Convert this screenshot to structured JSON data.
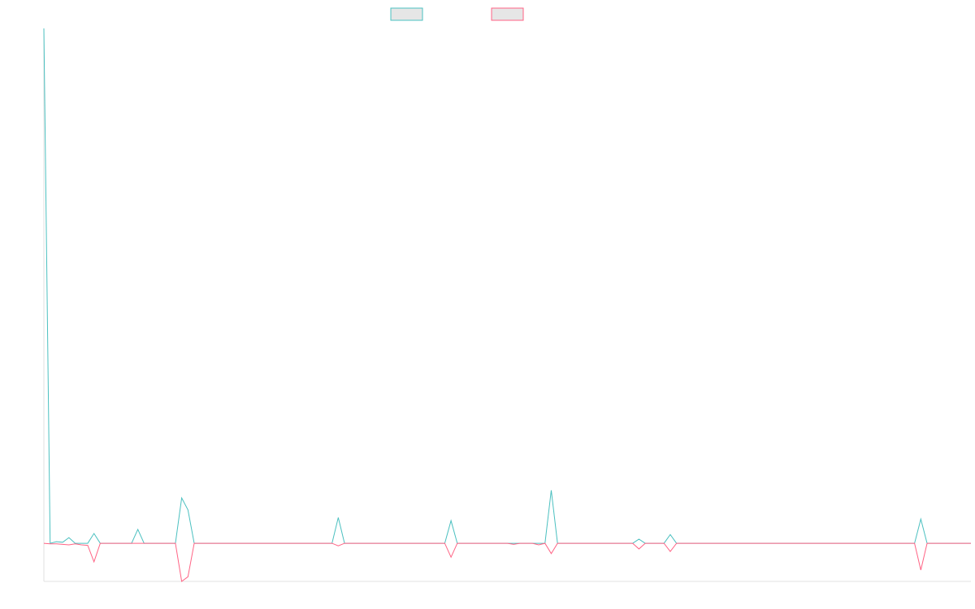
{
  "chart_data": {
    "type": "line",
    "ylim": [
      -7.4,
      100
    ],
    "legend": "top",
    "series": [
      {
        "color": "#4bc0c0",
        "values": [
          100,
          0,
          0.3,
          0.2,
          1.1,
          0,
          0,
          0,
          1.9,
          0,
          0,
          0,
          0,
          0,
          0,
          2.7,
          0,
          0,
          0,
          0,
          0,
          0,
          8.8,
          6.5,
          0,
          0,
          0,
          0,
          0,
          0,
          0,
          0,
          0,
          0,
          0,
          0,
          0,
          0,
          0,
          0,
          0,
          0,
          0,
          0,
          0,
          0,
          0,
          5,
          0,
          0,
          0,
          0,
          0,
          0,
          0,
          0,
          0,
          0,
          0,
          0,
          0,
          0,
          0,
          0,
          0,
          4.4,
          0,
          0,
          0,
          0,
          0,
          0,
          0,
          0,
          0,
          0,
          0,
          0,
          0,
          0,
          0,
          10.3,
          0,
          0,
          0,
          0,
          0,
          0,
          0,
          0,
          0,
          0,
          0,
          0,
          0,
          0.8,
          0,
          0,
          0,
          0,
          1.7,
          0,
          0,
          0,
          0,
          0,
          0,
          0,
          0,
          0,
          0,
          0,
          0,
          0,
          0,
          0,
          0,
          0,
          0,
          0,
          0,
          0,
          0,
          0,
          0,
          0,
          0,
          0,
          0,
          0,
          0,
          0,
          0,
          0,
          0,
          0,
          0,
          0,
          0,
          0,
          4.7,
          0,
          0,
          0,
          0,
          0,
          0,
          0,
          0
        ]
      },
      {
        "color": "#ff6384",
        "values": [
          0,
          -0.1,
          -0.1,
          -0.2,
          -0.3,
          -0.1,
          -0.3,
          -0.4,
          -3.6,
          0,
          0,
          0,
          0,
          0,
          0,
          0,
          0,
          0,
          0,
          0,
          0,
          0,
          -7.4,
          -6.5,
          0,
          0,
          0,
          0,
          0,
          0,
          0,
          0,
          0,
          0,
          0,
          0,
          0,
          0,
          0,
          0,
          0,
          0,
          0,
          0,
          0,
          0,
          0,
          -0.5,
          0,
          0,
          0,
          0,
          0,
          0,
          0,
          0,
          0,
          0,
          0,
          0,
          0,
          0,
          0,
          0,
          0,
          -2.7,
          0,
          0,
          0,
          0,
          0,
          0,
          0,
          0,
          0,
          -0.2,
          0,
          0,
          0,
          -0.3,
          0,
          -2,
          0,
          0,
          0,
          0,
          0,
          0,
          0,
          0,
          0,
          0,
          0,
          0,
          0,
          -1.1,
          0,
          0,
          0,
          0,
          -1.6,
          0,
          0,
          0,
          0,
          0,
          0,
          0,
          0,
          0,
          0,
          0,
          0,
          0,
          0,
          0,
          0,
          0,
          0,
          0,
          0,
          0,
          0,
          0,
          0,
          0,
          0,
          0,
          0,
          0,
          0,
          0,
          0,
          0,
          0,
          0,
          0,
          0,
          0,
          0,
          -5.2,
          0,
          0,
          0,
          0,
          0,
          0,
          0,
          0
        ]
      }
    ]
  }
}
